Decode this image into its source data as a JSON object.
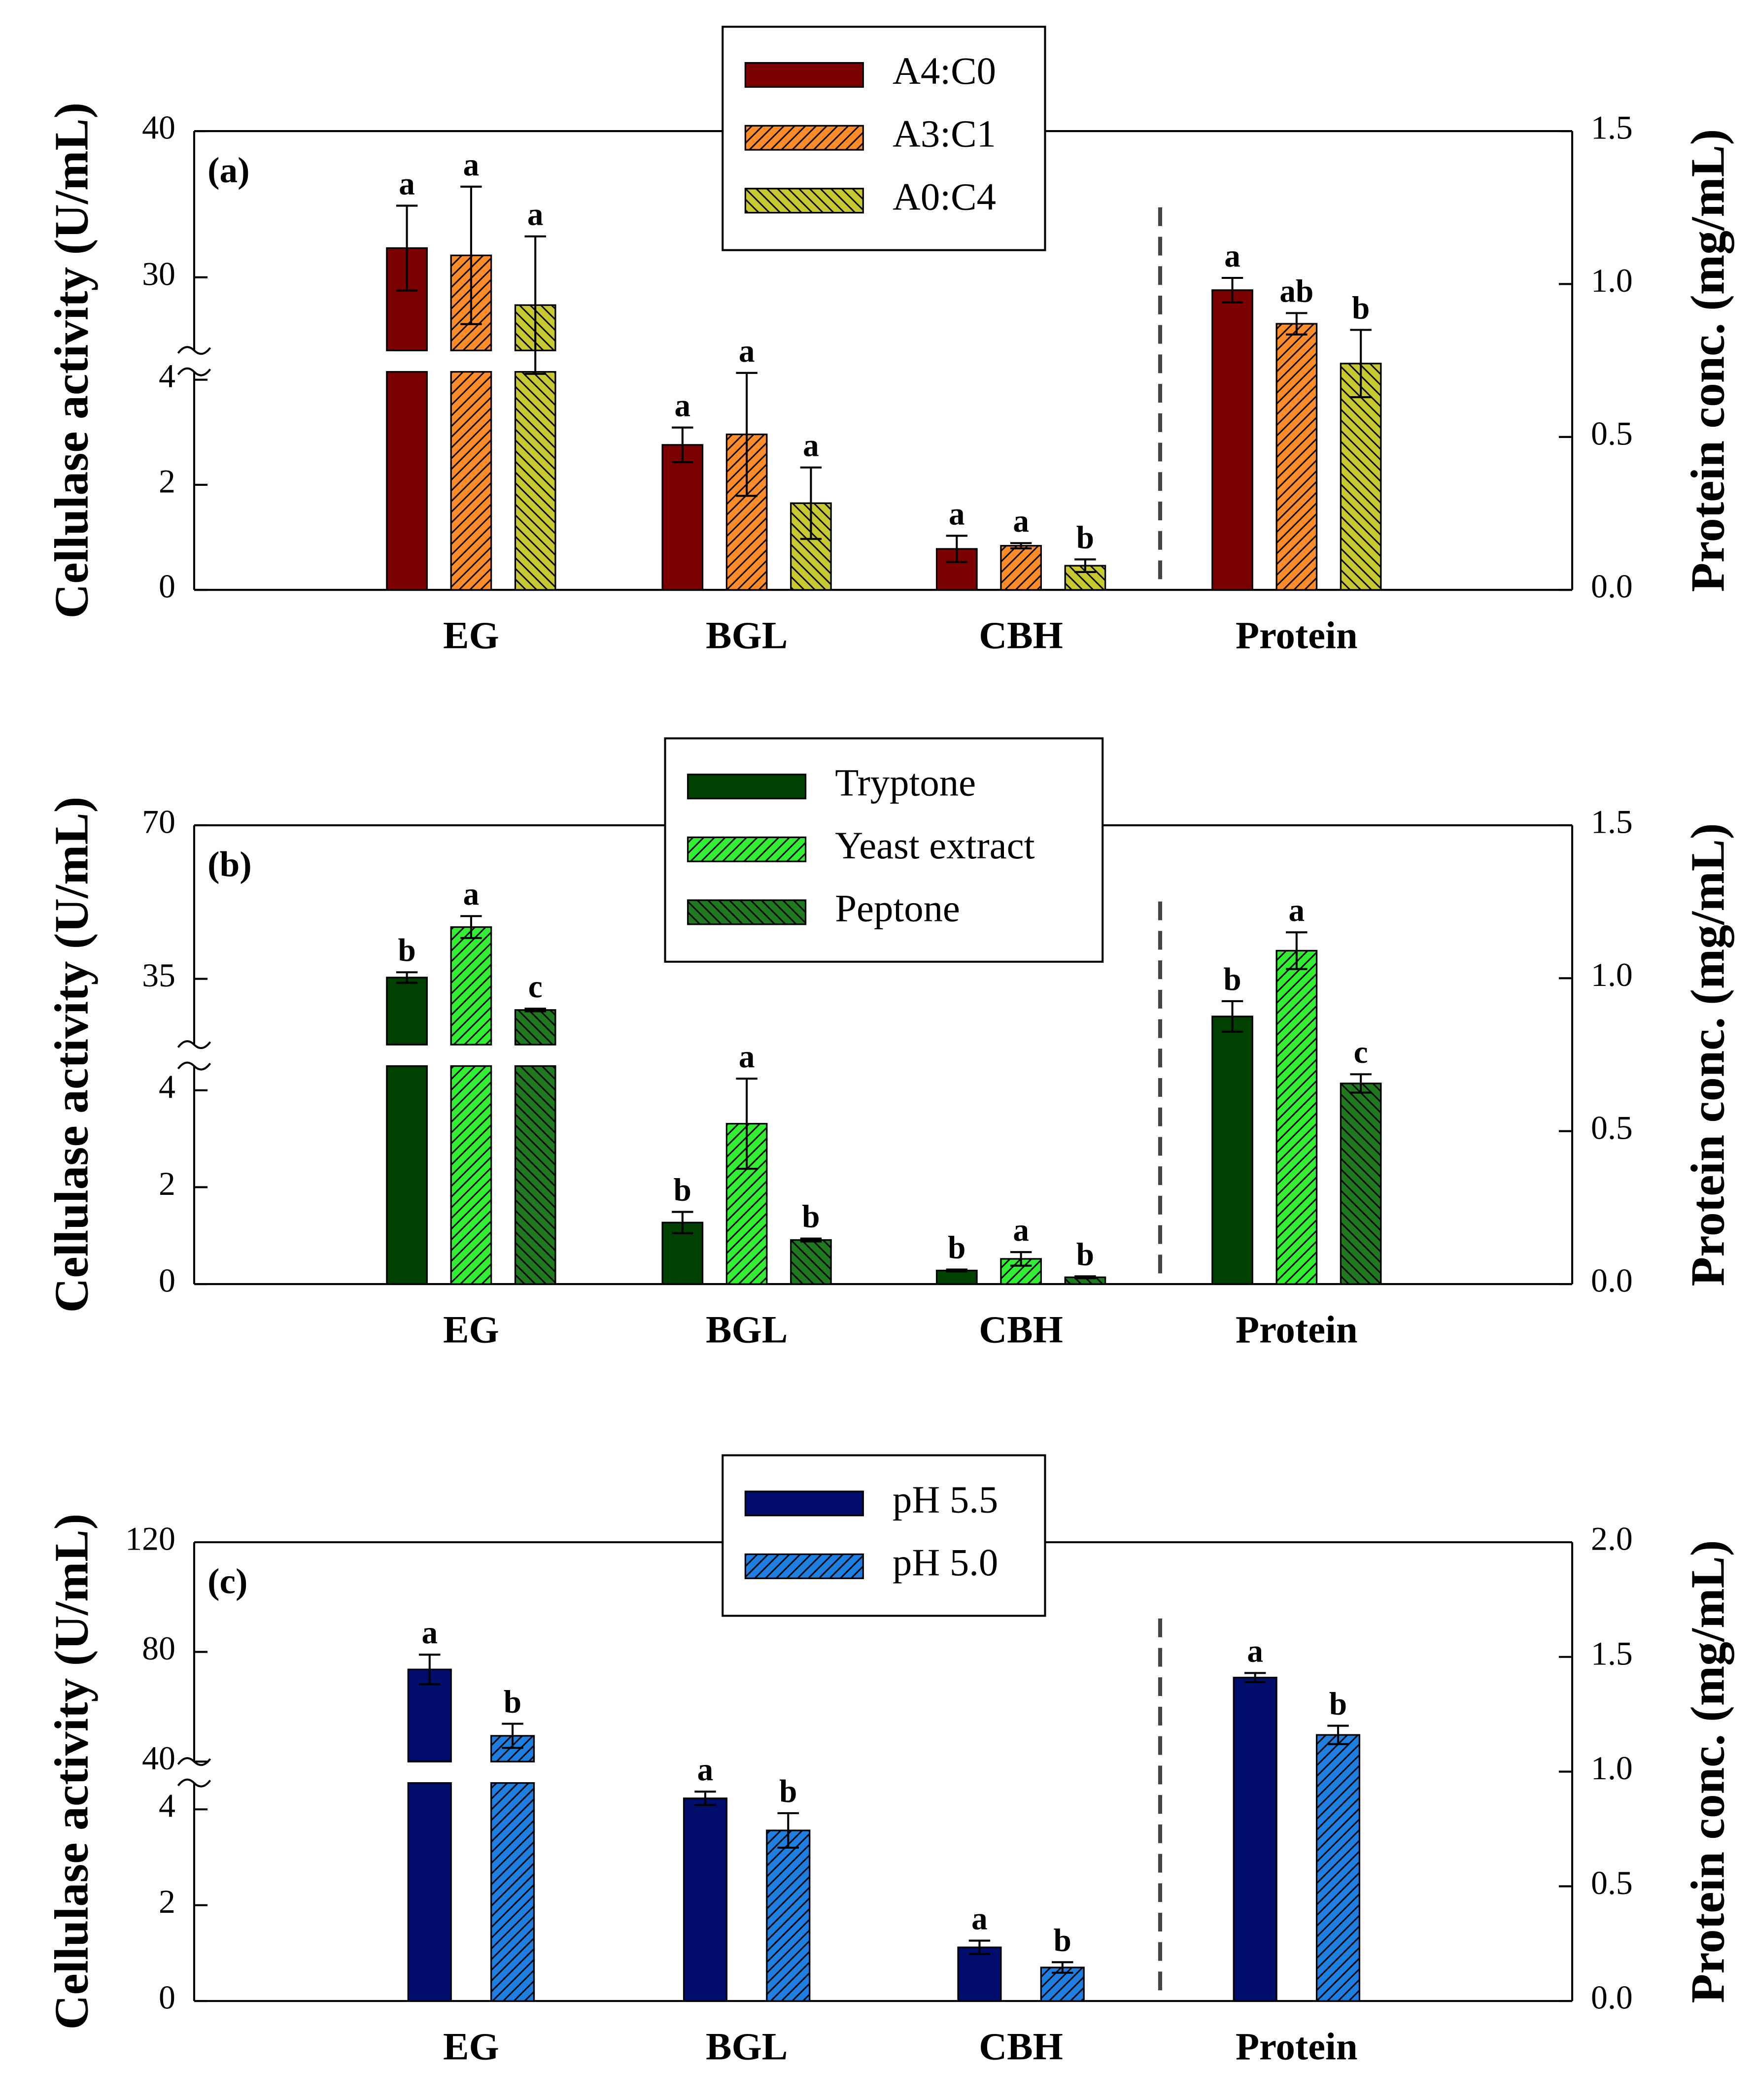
{
  "chart_data": [
    {
      "type": "bar",
      "panel_label": "(a)",
      "y_label": "Cellulase activity (U/mL)",
      "y2_label": "Protein conc. (mg/mL)",
      "categories": [
        "EG",
        "BGL",
        "CBH"
      ],
      "y2_category": "Protein",
      "ylim": [
        [
          0,
          4.15
        ],
        [
          25,
          40
        ]
      ],
      "yticks": [
        [
          0,
          2,
          4
        ],
        [
          30,
          40
        ]
      ],
      "y2lim": [
        0,
        1.5
      ],
      "y2ticks": [
        {
          "value": 0,
          "label": "0.0"
        },
        0.5,
        {
          "value": 1,
          "label": "1.0"
        },
        1.5
      ],
      "series": [
        {
          "name": "A4:C0",
          "color": "#7b0000",
          "hatch": "none",
          "values": [
            32.0,
            2.76,
            0.78
          ],
          "errors": [
            2.9,
            0.33,
            0.25
          ],
          "letters": [
            "a",
            "a",
            "a"
          ],
          "y2_value": 0.98,
          "y2_error": 0.04,
          "y2_letter": "a"
        },
        {
          "name": "A3:C1",
          "color": "#ff8c2a",
          "hatch": "fwd",
          "values": [
            31.5,
            2.96,
            0.84
          ],
          "errors": [
            4.7,
            1.17,
            0.05
          ],
          "letters": [
            "a",
            "a",
            "a"
          ],
          "y2_value": 0.87,
          "y2_error": 0.035,
          "y2_letter": "ab"
        },
        {
          "name": "A0:C4",
          "color": "#c8c832",
          "hatch": "back",
          "values": [
            28.1,
            1.65,
            0.46
          ],
          "errors": [
            4.7,
            0.68,
            0.12
          ],
          "letters": [
            "a",
            "a",
            "b"
          ],
          "y2_value": 0.74,
          "y2_error": 0.11,
          "y2_letter": "b"
        }
      ]
    },
    {
      "type": "bar",
      "panel_label": "(b)",
      "y_label": "Cellulase activity (U/mL)",
      "y2_label": "Protein conc. (mg/mL)",
      "categories": [
        "EG",
        "BGL",
        "CBH"
      ],
      "y2_category": "Protein",
      "ylim": [
        [
          0,
          4.5
        ],
        [
          20,
          70
        ]
      ],
      "yticks": [
        [
          0,
          2,
          4
        ],
        [
          35,
          70
        ]
      ],
      "y2lim": [
        0,
        1.5
      ],
      "y2ticks": [
        {
          "value": 0,
          "label": "0.0"
        },
        0.5,
        {
          "value": 1,
          "label": "1.0"
        },
        1.5
      ],
      "series": [
        {
          "name": "Tryptone",
          "color": "#004000",
          "hatch": "none",
          "values": [
            35.3,
            1.27,
            0.28
          ],
          "errors": [
            1.2,
            0.22,
            0.02
          ],
          "letters": [
            "b",
            "b",
            "b"
          ],
          "y2_value": 0.875,
          "y2_error": 0.05,
          "y2_letter": "b"
        },
        {
          "name": "Yeast extract",
          "color": "#33ee33",
          "hatch": "fwd",
          "values": [
            46.8,
            3.31,
            0.52
          ],
          "errors": [
            2.5,
            0.93,
            0.14
          ],
          "letters": [
            "a",
            "a",
            "a"
          ],
          "y2_value": 1.09,
          "y2_error": 0.06,
          "y2_letter": "a"
        },
        {
          "name": "Peptone",
          "color": "#1f7a1f",
          "hatch": "back",
          "values": [
            27.9,
            0.91,
            0.14
          ],
          "errors": [
            0.3,
            0.03,
            0.02
          ],
          "letters": [
            "c",
            "b",
            "b"
          ],
          "y2_value": 0.656,
          "y2_error": 0.03,
          "y2_letter": "c"
        }
      ]
    },
    {
      "type": "bar",
      "panel_label": "(c)",
      "y_label": "Cellulase activity (U/mL)",
      "y2_label": "Protein conc. (mg/mL)",
      "categories": [
        "EG",
        "BGL",
        "CBH"
      ],
      "y2_category": "Protein",
      "ylim": [
        [
          0,
          4.55
        ],
        [
          40,
          120
        ]
      ],
      "yticks": [
        [
          0,
          2,
          4
        ],
        [
          40,
          80,
          120
        ]
      ],
      "y2lim": [
        0,
        2
      ],
      "y2ticks": [
        {
          "value": 0,
          "label": "0.0"
        },
        0.5,
        {
          "value": 1,
          "label": "1.0"
        },
        1.5,
        {
          "value": 2,
          "label": "2.0"
        }
      ],
      "series": [
        {
          "name": "pH 5.5",
          "color": "#000d6b",
          "hatch": "none",
          "values": [
            73.6,
            4.23,
            1.12
          ],
          "errors": [
            5.4,
            0.14,
            0.14
          ],
          "letters": [
            "a",
            "a",
            "a"
          ],
          "y2_value": 1.41,
          "y2_error": 0.02,
          "y2_letter": "a"
        },
        {
          "name": "pH 5.0",
          "color": "#1e7fe0",
          "hatch": "fwd",
          "values": [
            49.4,
            3.56,
            0.7
          ],
          "errors": [
            4.4,
            0.36,
            0.11
          ],
          "letters": [
            "b",
            "b",
            "b"
          ],
          "y2_value": 1.16,
          "y2_error": 0.04,
          "y2_letter": "b"
        }
      ]
    }
  ]
}
